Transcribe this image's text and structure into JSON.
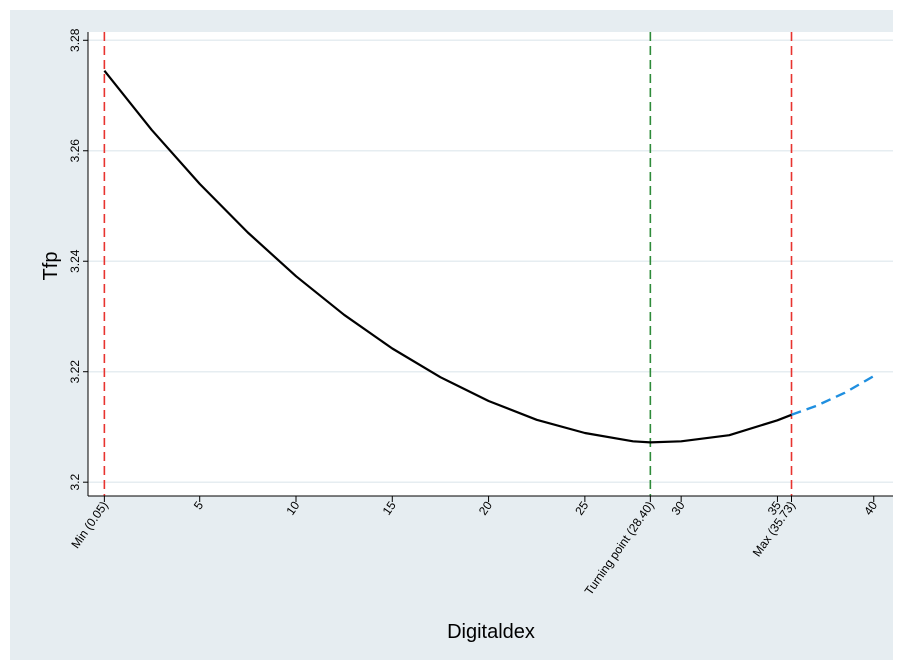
{
  "chart_data": {
    "type": "line",
    "title": "",
    "xlabel": "Digitaldex",
    "ylabel": "Tfp",
    "xlim": [
      -0.8,
      41.0
    ],
    "ylim": [
      3.1975,
      3.2815
    ],
    "yticks": [
      {
        "value": 3.2,
        "label": "3.2"
      },
      {
        "value": 3.22,
        "label": "3.22"
      },
      {
        "value": 3.24,
        "label": "3.24"
      },
      {
        "value": 3.26,
        "label": "3.26"
      },
      {
        "value": 3.28,
        "label": "3.28"
      }
    ],
    "xticks": [
      {
        "value": 0.05,
        "label": "Min (0.05)"
      },
      {
        "value": 5,
        "label": "5"
      },
      {
        "value": 10,
        "label": "10"
      },
      {
        "value": 15,
        "label": "15"
      },
      {
        "value": 20,
        "label": "20"
      },
      {
        "value": 25,
        "label": "25"
      },
      {
        "value": 28.4,
        "label": "Turning point (28.40)"
      },
      {
        "value": 30,
        "label": "30"
      },
      {
        "value": 35,
        "label": "35"
      },
      {
        "value": 35.73,
        "label": "Max (35.73)"
      },
      {
        "value": 40,
        "label": "40"
      }
    ],
    "grid": true,
    "series": [
      {
        "style": "solid",
        "color": "#000000",
        "x": [
          0.05,
          2.5,
          5,
          7.5,
          10,
          12.5,
          15,
          17.5,
          20,
          22.5,
          25,
          27.5,
          28.4,
          30,
          32.5,
          35,
          35.73
        ],
        "y": [
          3.2745,
          3.2638,
          3.254,
          3.2452,
          3.2373,
          3.2303,
          3.2242,
          3.219,
          3.2147,
          3.2113,
          3.2089,
          3.2074,
          3.2072,
          3.2074,
          3.2085,
          3.2112,
          3.2122
        ]
      },
      {
        "style": "dashed",
        "color": "#1f8fe0",
        "x": [
          35.73,
          37,
          38.5,
          40
        ],
        "y": [
          3.2122,
          3.2138,
          3.2162,
          3.2192
        ]
      }
    ],
    "vlines": [
      {
        "x": 0.05,
        "color": "#e8332f"
      },
      {
        "x": 28.4,
        "color": "#2e8b3a"
      },
      {
        "x": 35.73,
        "color": "#e8332f"
      }
    ]
  }
}
